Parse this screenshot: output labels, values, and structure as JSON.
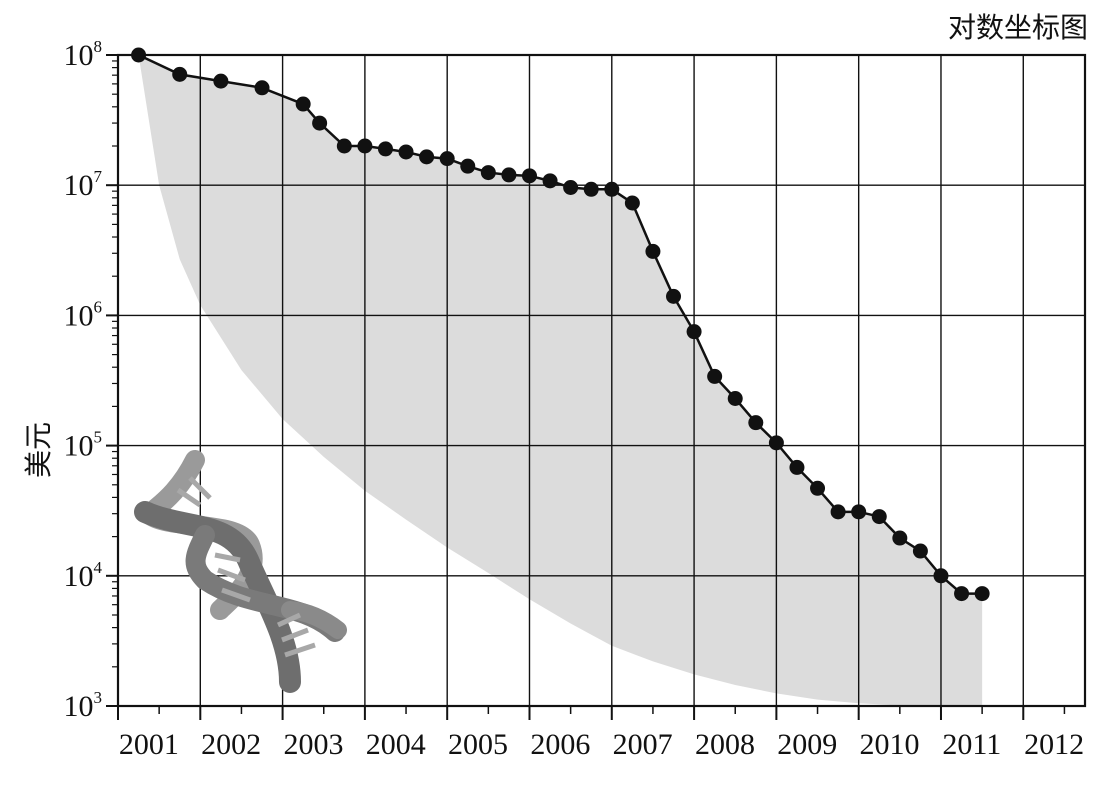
{
  "chart_data": {
    "type": "line",
    "title": "对数坐标图",
    "xlabel": "",
    "ylabel": "美元",
    "y_scale": "log",
    "ylim": [
      1000,
      100000000
    ],
    "xlim": [
      2001,
      2012.75
    ],
    "grid": true,
    "x_tick_labels": [
      "2001",
      "2002",
      "2003",
      "2004",
      "2005",
      "2006",
      "2007",
      "2008",
      "2009",
      "2010",
      "2011",
      "2012"
    ],
    "y_tick_labels": [
      {
        "value": 1000,
        "base": "10",
        "exp": "3"
      },
      {
        "value": 10000,
        "base": "10",
        "exp": "4"
      },
      {
        "value": 100000,
        "base": "10",
        "exp": "5"
      },
      {
        "value": 1000000,
        "base": "10",
        "exp": "6"
      },
      {
        "value": 10000000,
        "base": "10",
        "exp": "7"
      },
      {
        "value": 100000000,
        "base": "10",
        "exp": "8"
      }
    ],
    "series": [
      {
        "color": "#111111",
        "points": [
          [
            2001.25,
            100000000
          ],
          [
            2001.75,
            71000000
          ],
          [
            2002.25,
            63000000
          ],
          [
            2002.75,
            56000000
          ],
          [
            2003.25,
            42000000
          ],
          [
            2003.45,
            30000000
          ],
          [
            2003.75,
            20000000
          ],
          [
            2004.0,
            20000000
          ],
          [
            2004.25,
            19000000
          ],
          [
            2004.5,
            18000000
          ],
          [
            2004.75,
            16500000
          ],
          [
            2005.0,
            16000000
          ],
          [
            2005.25,
            14000000
          ],
          [
            2005.5,
            12500000
          ],
          [
            2005.75,
            12000000
          ],
          [
            2006.0,
            11800000
          ],
          [
            2006.25,
            10800000
          ],
          [
            2006.5,
            9600000
          ],
          [
            2006.75,
            9300000
          ],
          [
            2007.0,
            9300000
          ],
          [
            2007.25,
            7300000
          ],
          [
            2007.5,
            3100000
          ],
          [
            2007.75,
            1400000
          ],
          [
            2008.0,
            750000
          ],
          [
            2008.25,
            340000
          ],
          [
            2008.5,
            230000
          ],
          [
            2008.75,
            150000
          ],
          [
            2009.0,
            105000
          ],
          [
            2009.25,
            68000
          ],
          [
            2009.5,
            47000
          ],
          [
            2009.75,
            31000
          ],
          [
            2010.0,
            31000
          ],
          [
            2010.25,
            28500
          ],
          [
            2010.5,
            19500
          ],
          [
            2010.75,
            15500
          ],
          [
            2011.0,
            10000
          ],
          [
            2011.25,
            7300
          ],
          [
            2011.5,
            7300
          ]
        ]
      }
    ],
    "moore_band": {
      "description_color": "#dcdcdc",
      "upper_x": 2001.25,
      "lower_points": [
        [
          2001.25,
          100000000
        ],
        [
          2001.5,
          10000000
        ],
        [
          2001.75,
          2700000
        ],
        [
          2002.0,
          1200000
        ],
        [
          2002.5,
          380000
        ],
        [
          2003.0,
          160000
        ],
        [
          2003.5,
          82000
        ],
        [
          2004.0,
          45000
        ],
        [
          2004.5,
          27000
        ],
        [
          2005.0,
          16500
        ],
        [
          2005.5,
          10500
        ],
        [
          2006.0,
          6600
        ],
        [
          2006.5,
          4300
        ],
        [
          2007.0,
          2900
        ],
        [
          2007.5,
          2200
        ],
        [
          2008.0,
          1750
        ],
        [
          2008.5,
          1450
        ],
        [
          2009.0,
          1250
        ],
        [
          2009.5,
          1120
        ],
        [
          2010.0,
          1050
        ],
        [
          2010.5,
          1010
        ],
        [
          2011.0,
          1000
        ],
        [
          2011.5,
          1000
        ]
      ]
    }
  },
  "icons": {
    "dna": "dna-helix-icon"
  },
  "colors": {
    "band": "#dcdcdc",
    "line": "#111111",
    "grid": "#111111",
    "dna_light": "#9a9a9a",
    "dna_dark": "#6e6e6e"
  }
}
